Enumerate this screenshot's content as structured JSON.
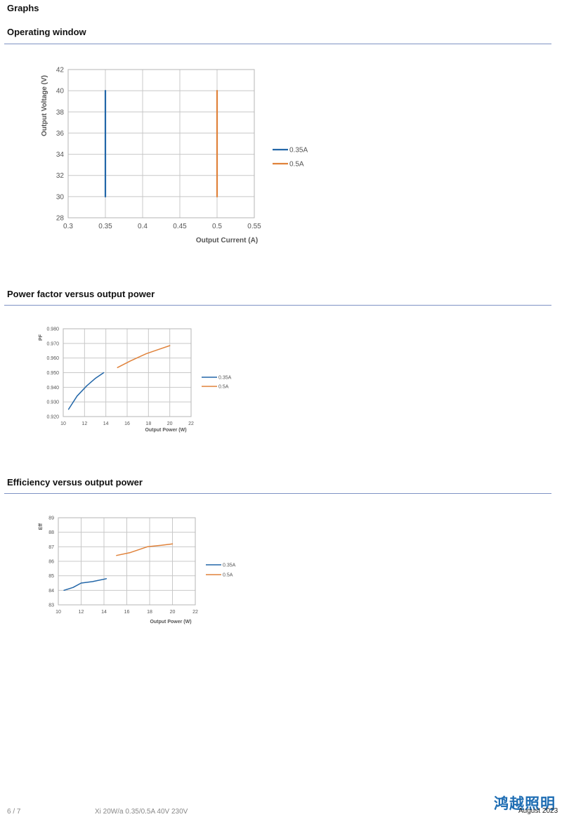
{
  "page": {
    "title": "Graphs",
    "footer": {
      "page_number": "6 / 7",
      "document": "Xi 20W/a 0.35/0.5A 40V 230V",
      "date": "August 2023",
      "logo_text": "鸿越照明"
    }
  },
  "sections": [
    {
      "title": "Operating window"
    },
    {
      "title": "Power factor versus output power"
    },
    {
      "title": "Efficiency versus output power"
    }
  ],
  "colors": {
    "series_035": "#2266a8",
    "series_05": "#e0823a",
    "rule": "#7f93c4"
  },
  "chart_data": [
    {
      "type": "line",
      "title": "",
      "xlabel": "Output Current (A)",
      "ylabel": "Output Voltage (V)",
      "xlim": [
        0.3,
        0.55
      ],
      "ylim": [
        28,
        42
      ],
      "xticks": [
        "0.3",
        "0.35",
        "0.4",
        "0.45",
        "0.5",
        "0.55"
      ],
      "yticks": [
        "28",
        "30",
        "32",
        "34",
        "36",
        "38",
        "40",
        "42"
      ],
      "legend_position": "right",
      "series": [
        {
          "name": "0.35A",
          "x": [
            0.35,
            0.35
          ],
          "y": [
            30,
            40
          ]
        },
        {
          "name": "0.5A",
          "x": [
            0.5,
            0.5
          ],
          "y": [
            30,
            40
          ]
        }
      ]
    },
    {
      "type": "line",
      "title": "",
      "xlabel": "Output Power (W)",
      "ylabel": "PF",
      "xlim": [
        10,
        22
      ],
      "ylim": [
        0.92,
        0.98
      ],
      "xticks": [
        "10",
        "12",
        "14",
        "16",
        "18",
        "20",
        "22"
      ],
      "yticks": [
        "0.920",
        "0.930",
        "0.940",
        "0.950",
        "0.960",
        "0.970",
        "0.980"
      ],
      "legend_position": "right",
      "series": [
        {
          "name": "0.35A",
          "x": [
            10.5,
            11.3,
            12.2,
            13.0,
            13.8
          ],
          "y": [
            0.925,
            0.934,
            0.941,
            0.946,
            0.95
          ]
        },
        {
          "name": "0.5A",
          "x": [
            15.1,
            16.3,
            17.8,
            19.0,
            20.0
          ],
          "y": [
            0.9535,
            0.958,
            0.963,
            0.966,
            0.9685
          ]
        }
      ]
    },
    {
      "type": "line",
      "title": "",
      "xlabel": "Output Power (W)",
      "ylabel": "Eff",
      "xlim": [
        10,
        22
      ],
      "ylim": [
        83,
        89
      ],
      "xticks": [
        "10",
        "12",
        "14",
        "16",
        "18",
        "20",
        "22"
      ],
      "yticks": [
        "83",
        "84",
        "85",
        "86",
        "87",
        "88",
        "89"
      ],
      "legend_position": "right",
      "series": [
        {
          "name": "0.35A",
          "x": [
            10.5,
            11.3,
            12.0,
            13.0,
            14.2
          ],
          "y": [
            84.0,
            84.2,
            84.5,
            84.6,
            84.8
          ]
        },
        {
          "name": "0.5A",
          "x": [
            15.1,
            16.3,
            17.8,
            19.0,
            20.0
          ],
          "y": [
            86.4,
            86.6,
            87.0,
            87.1,
            87.2
          ]
        }
      ]
    }
  ]
}
